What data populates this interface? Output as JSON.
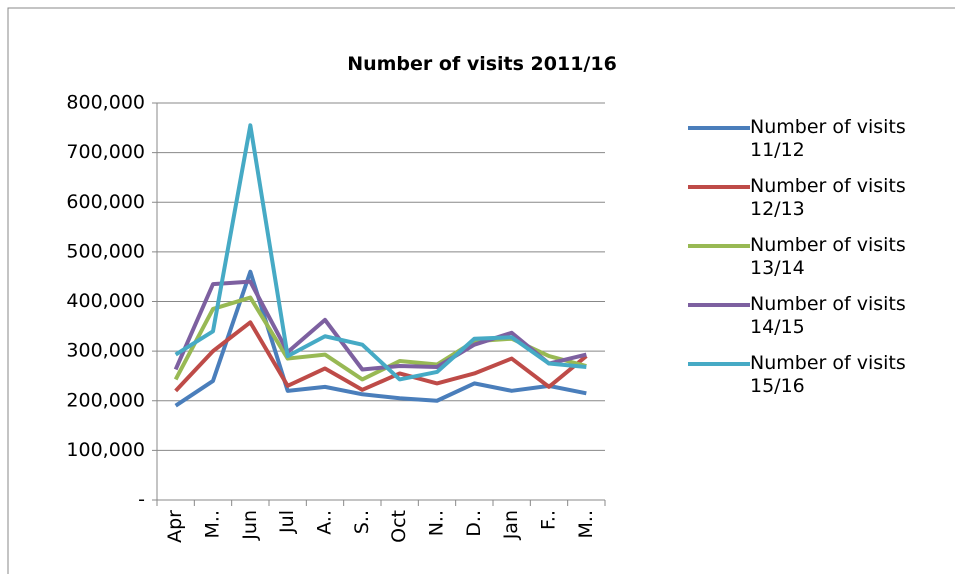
{
  "chart_data": {
    "type": "line",
    "title": "Number of visits 2011/16",
    "categories": [
      "Apr",
      "M..",
      "Jun",
      "Jul",
      "A..",
      "S..",
      "Oct",
      "N..",
      "D..",
      "Jan",
      "F..",
      "M.."
    ],
    "series": [
      {
        "name": "Number of visits 11/12",
        "color": "#4a7ebb",
        "values": [
          190000,
          240000,
          460000,
          220000,
          228000,
          213000,
          205000,
          200000,
          235000,
          220000,
          230000,
          215000
        ]
      },
      {
        "name": "Number of visits 12/13",
        "color": "#be4b48",
        "values": [
          220000,
          300000,
          358000,
          230000,
          265000,
          222000,
          255000,
          235000,
          255000,
          285000,
          228000,
          290000
        ]
      },
      {
        "name": "Number of visits 13/14",
        "color": "#98b954",
        "values": [
          243000,
          385000,
          408000,
          285000,
          293000,
          243000,
          280000,
          273000,
          320000,
          325000,
          290000,
          270000
        ]
      },
      {
        "name": "Number of visits 14/15",
        "color": "#7d60a0",
        "values": [
          263000,
          435000,
          440000,
          298000,
          363000,
          263000,
          270000,
          268000,
          313000,
          337000,
          275000,
          293000
        ]
      },
      {
        "name": "Number of visits 15/16",
        "color": "#46aac5",
        "values": [
          293000,
          340000,
          755000,
          290000,
          330000,
          313000,
          243000,
          258000,
          325000,
          328000,
          275000,
          268000
        ]
      }
    ],
    "ylim": [
      0,
      800000
    ],
    "yticks": [
      {
        "value": 0,
        "label": "-"
      },
      {
        "value": 100000,
        "label": "100,000"
      },
      {
        "value": 200000,
        "label": "200,000"
      },
      {
        "value": 300000,
        "label": "300,000"
      },
      {
        "value": 400000,
        "label": "400,000"
      },
      {
        "value": 500000,
        "label": "500,000"
      },
      {
        "value": 600000,
        "label": "600,000"
      },
      {
        "value": 700000,
        "label": "700,000"
      },
      {
        "value": 800000,
        "label": "800,000"
      }
    ],
    "grid": true,
    "legend": "right"
  }
}
